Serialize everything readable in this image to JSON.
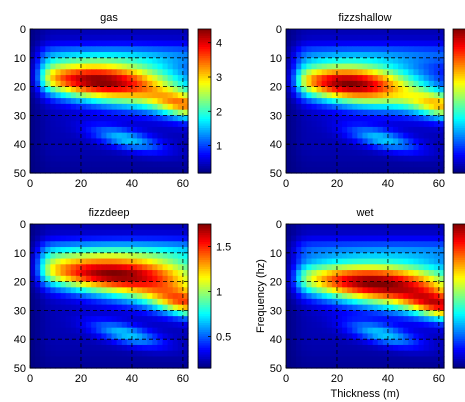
{
  "chart_data": [
    {
      "type": "heatmap",
      "title": "gas",
      "xlabel": "",
      "ylabel": "",
      "xlim": [
        0,
        62
      ],
      "ylim": [
        50,
        0
      ],
      "xticks": [
        "0",
        "20",
        "40",
        "60"
      ],
      "yticks": [
        "0",
        "10",
        "20",
        "30",
        "40",
        "50"
      ],
      "colorbar": {
        "min": 0.2,
        "max": 4.4,
        "ticks": [
          "1",
          "2",
          "3",
          "4"
        ],
        "tick_values": [
          1,
          2,
          3,
          4
        ]
      },
      "peak": 4.3,
      "grid": true,
      "features": {
        "main_band_center_hz": 18,
        "main_band_x_range_m": [
          10,
          45
        ],
        "secondary_band_center_hz": 25,
        "secondary_band_x_range_m": [
          45,
          62
        ]
      }
    },
    {
      "type": "heatmap",
      "title": "fizzshallow",
      "xlabel": "",
      "ylabel": "",
      "xlim": [
        0,
        62
      ],
      "ylim": [
        50,
        0
      ],
      "xticks": [
        "0",
        "20",
        "40",
        "60"
      ],
      "yticks": [
        "0",
        "10",
        "20",
        "30",
        "40",
        "50"
      ],
      "colorbar": {
        "min": 0,
        "max": 1,
        "ticks": [],
        "tick_values": []
      },
      "peak": 1,
      "grid": true,
      "features": {
        "main_band_center_hz": 19,
        "main_band_x_range_m": [
          10,
          40
        ],
        "secondary_band_center_hz": 25,
        "secondary_band_x_range_m": [
          42,
          62
        ]
      }
    },
    {
      "type": "heatmap",
      "title": "fizzdeep",
      "xlabel": "",
      "ylabel": "",
      "xlim": [
        0,
        62
      ],
      "ylim": [
        50,
        0
      ],
      "xticks": [
        "0",
        "20",
        "40",
        "60"
      ],
      "yticks": [
        "0",
        "10",
        "20",
        "30",
        "40",
        "50"
      ],
      "colorbar": {
        "min": 0.15,
        "max": 1.75,
        "ticks": [
          "0.5",
          "1",
          "1.5"
        ],
        "tick_values": [
          0.5,
          1,
          1.5
        ]
      },
      "peak": 1.7,
      "grid": true,
      "features": {
        "main_band_center_hz": 17,
        "main_band_x_range_m": [
          12,
          55
        ],
        "secondary_band_center_hz": 26,
        "secondary_band_x_range_m": [
          50,
          62
        ]
      }
    },
    {
      "type": "heatmap",
      "title": "wet",
      "xlabel": "Thickness (m)",
      "ylabel": "Frequency (hz)",
      "xlim": [
        0,
        62
      ],
      "ylim": [
        50,
        0
      ],
      "xticks": [
        "0",
        "20",
        "40",
        "60"
      ],
      "yticks": [
        "0",
        "10",
        "20",
        "30",
        "40",
        "50"
      ],
      "colorbar": {
        "min": 0,
        "max": 1,
        "ticks": [],
        "tick_values": []
      },
      "peak": 1,
      "grid": true,
      "features": {
        "main_band_center_hz": 20,
        "main_band_x_range_m": [
          15,
          55
        ],
        "secondary_band_center_hz": 27,
        "secondary_band_x_range_m": [
          50,
          62
        ]
      }
    }
  ]
}
